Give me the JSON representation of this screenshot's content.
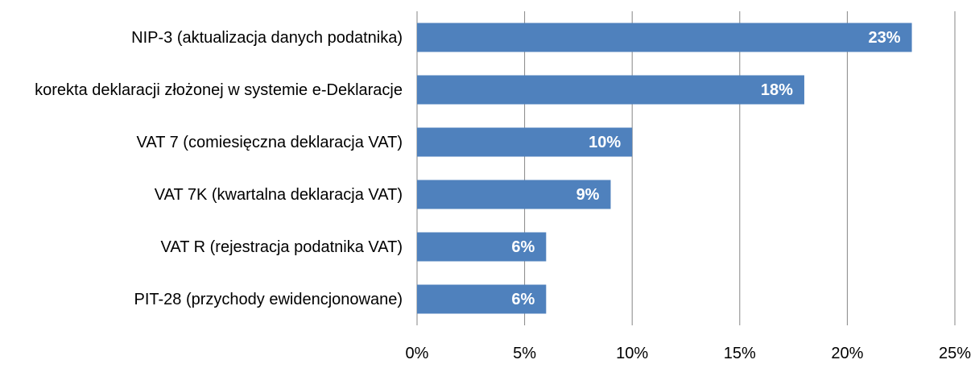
{
  "chart_data": {
    "type": "bar",
    "orientation": "horizontal",
    "categories": [
      "NIP-3 (aktualizacja danych podatnika)",
      "korekta deklaracji złożonej w systemie e-Deklaracje",
      "VAT 7 (comiesięczna deklaracja VAT)",
      "VAT 7K (kwartalna deklaracja VAT)",
      "VAT R (rejestracja podatnika VAT)",
      "PIT-28 (przychody ewidencjonowane)"
    ],
    "values": [
      23,
      18,
      10,
      9,
      6,
      6
    ],
    "value_labels": [
      "23%",
      "18%",
      "10%",
      "9%",
      "6%",
      "6%"
    ],
    "color": "#4f81bd",
    "xlim": [
      0,
      25
    ],
    "xticks": [
      {
        "value": 0,
        "label": "0%"
      },
      {
        "value": 5,
        "label": "5%"
      },
      {
        "value": 10,
        "label": "10%"
      },
      {
        "value": 15,
        "label": "15%"
      },
      {
        "value": 20,
        "label": "20%"
      },
      {
        "value": 25,
        "label": "25%"
      }
    ],
    "grid": true
  }
}
